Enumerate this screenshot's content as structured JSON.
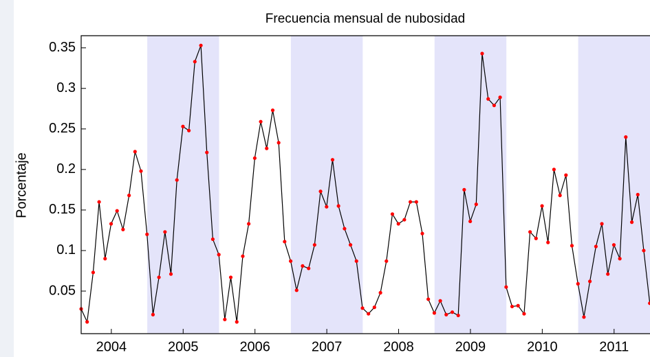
{
  "chart_data": {
    "type": "line",
    "title": "Frecuencia mensual de nubosidad",
    "y_label": "Porcentaje",
    "x": [
      2004.08,
      2004.163,
      2004.247,
      2004.33,
      2004.413,
      2004.497,
      2004.58,
      2004.663,
      2004.747,
      2004.83,
      2004.913,
      2004.997,
      2005.08,
      2005.163,
      2005.247,
      2005.33,
      2005.413,
      2005.497,
      2005.58,
      2005.663,
      2005.747,
      2005.83,
      2005.913,
      2005.997,
      2006.08,
      2006.163,
      2006.247,
      2006.33,
      2006.413,
      2006.497,
      2006.58,
      2006.663,
      2006.747,
      2006.83,
      2006.913,
      2006.997,
      2007.08,
      2007.163,
      2007.247,
      2007.33,
      2007.413,
      2007.497,
      2007.58,
      2007.663,
      2007.747,
      2007.83,
      2007.913,
      2007.997,
      2008.08,
      2008.163,
      2008.247,
      2008.33,
      2008.413,
      2008.497,
      2008.58,
      2008.663,
      2008.747,
      2008.83,
      2008.913,
      2008.997,
      2009.08,
      2009.163,
      2009.247,
      2009.33,
      2009.413,
      2009.497,
      2009.58,
      2009.663,
      2009.747,
      2009.83,
      2009.913,
      2009.997,
      2010.08,
      2010.163,
      2010.247,
      2010.33,
      2010.413,
      2010.497,
      2010.58,
      2010.663,
      2010.747,
      2010.83,
      2010.913,
      2010.997,
      2011.08,
      2011.163,
      2011.247,
      2011.33,
      2011.413,
      2011.497,
      2011.58,
      2011.663,
      2011.747,
      2011.83,
      2011.913,
      2011.997
    ],
    "series": [
      {
        "color": "#000000",
        "marker_color": "#ff0000",
        "values": [
          0.028,
          0.012,
          0.073,
          0.16,
          0.09,
          0.133,
          0.149,
          0.126,
          0.168,
          0.222,
          0.198,
          0.12,
          0.021,
          0.067,
          0.123,
          0.071,
          0.187,
          0.253,
          0.248,
          0.333,
          0.353,
          0.221,
          0.114,
          0.095,
          0.015,
          0.067,
          0.012,
          0.093,
          0.133,
          0.214,
          0.259,
          0.226,
          0.273,
          0.233,
          0.111,
          0.087,
          0.051,
          0.081,
          0.078,
          0.107,
          0.173,
          0.154,
          0.212,
          0.155,
          0.127,
          0.107,
          0.087,
          0.029,
          0.022,
          0.03,
          0.048,
          0.087,
          0.145,
          0.133,
          0.138,
          0.16,
          0.16,
          0.121,
          0.04,
          0.023,
          0.038,
          0.021,
          0.024,
          0.02,
          0.175,
          0.136,
          0.157,
          0.343,
          0.287,
          0.279,
          0.289,
          0.055,
          0.031,
          0.032,
          0.022,
          0.123,
          0.115,
          0.155,
          0.11,
          0.2,
          0.168,
          0.193,
          0.106,
          0.059,
          0.018,
          0.062,
          0.105,
          0.133,
          0.071,
          0.107,
          0.09,
          0.24,
          0.135,
          0.169,
          0.1,
          0.035
        ]
      }
    ],
    "xlim": [
      2004.08,
      2012.0
    ],
    "xticks": [
      {
        "value": 2004.5,
        "label": "2004"
      },
      {
        "value": 2005.5,
        "label": "2005"
      },
      {
        "value": 2006.5,
        "label": "2006"
      },
      {
        "value": 2007.5,
        "label": "2007"
      },
      {
        "value": 2008.5,
        "label": "2008"
      },
      {
        "value": 2009.5,
        "label": "2009"
      },
      {
        "value": 2010.5,
        "label": "2010"
      },
      {
        "value": 2011.5,
        "label": "2011"
      }
    ],
    "ylim": [
      -0.0025,
      0.365
    ],
    "yticks": [
      0.05,
      0.1,
      0.15,
      0.2,
      0.25,
      0.3,
      0.35
    ],
    "bands": [
      [
        2005,
        2006
      ],
      [
        2007,
        2008
      ],
      [
        2009,
        2010
      ],
      [
        2011,
        2012
      ]
    ],
    "band_color": "#e4e4fa",
    "grid": false
  }
}
